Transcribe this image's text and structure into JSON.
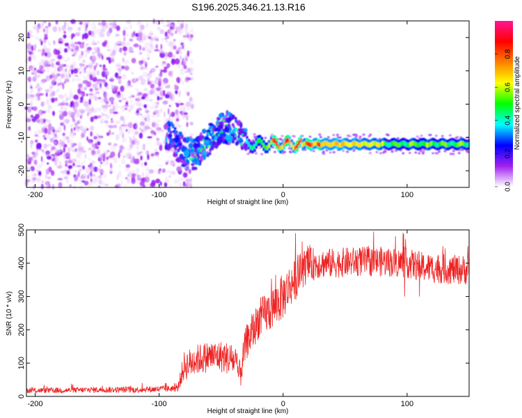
{
  "figure": {
    "title": "S196.2025.346.21.13.R16"
  },
  "chart_data": [
    {
      "type": "heatmap",
      "name": "spectrogram",
      "xlabel": "Height of straight line (km)",
      "ylabel": "Frequency (Hz)",
      "xlim": [
        -207,
        150
      ],
      "ylim": [
        -25,
        25
      ],
      "xticks": [
        -200,
        -100,
        0,
        100
      ],
      "yticks": [
        20,
        10,
        0,
        -10,
        -20
      ],
      "grid": false,
      "colorbar": {
        "label": "Normalized spectral amplitude",
        "range": [
          0,
          1
        ],
        "ticks": [
          0.0,
          0.2,
          0.4,
          0.6,
          0.8
        ],
        "tick_labels": [
          "0.0",
          "0.2",
          "0.4",
          "0.6",
          "0.8"
        ],
        "colors": [
          "#ffffff",
          "#a020f0",
          "#0000ff",
          "#00ffff",
          "#00ff00",
          "#ffff00",
          "#ff8000",
          "#ff0000",
          "#ff1493"
        ]
      },
      "features": [
        {
          "name": "noise-field",
          "x_range": [
            -207,
            -85
          ],
          "freq_range": [
            -25,
            25
          ],
          "amplitude": [
            0.02,
            0.15
          ]
        },
        {
          "name": "transition-blobs",
          "x_range": [
            -95,
            -30
          ],
          "freq_range": [
            -17,
            -3
          ],
          "amplitude": [
            0.1,
            0.35
          ]
        },
        {
          "name": "carrier-tone",
          "x_range": [
            -30,
            150
          ],
          "freq_center_hz": -12,
          "amplitude": [
            0.4,
            1.0
          ]
        }
      ]
    },
    {
      "type": "line",
      "name": "snr",
      "xlabel": "Height of straight line (km)",
      "ylabel": "SNR (10 * v/v)",
      "xlim": [
        -207,
        150
      ],
      "ylim": [
        0,
        500
      ],
      "xticks": [
        -200,
        -100,
        0,
        100
      ],
      "yticks": [
        0,
        100,
        200,
        300,
        400,
        500
      ],
      "grid": false,
      "color": "#ee2222",
      "trend": {
        "x": [
          -207,
          -180,
          -150,
          -120,
          -100,
          -85,
          -80,
          -70,
          -60,
          -50,
          -40,
          -35,
          -30,
          -25,
          -20,
          -10,
          0,
          5,
          10,
          15,
          20,
          30,
          40,
          60,
          80,
          100,
          110,
          120,
          140,
          150
        ],
        "y": [
          18,
          18,
          20,
          20,
          22,
          24,
          90,
          110,
          120,
          120,
          110,
          60,
          160,
          190,
          230,
          260,
          300,
          330,
          350,
          380,
          395,
          400,
          400,
          405,
          405,
          400,
          390,
          385,
          380,
          380
        ]
      },
      "noise_amplitude": {
        "x": [
          -207,
          -85,
          -80,
          -40,
          -35,
          0,
          30,
          150
        ],
        "y": [
          8,
          10,
          45,
          50,
          50,
          70,
          45,
          45
        ]
      },
      "notable_points": [
        {
          "x": -95,
          "y": 40
        },
        {
          "x": 10,
          "y": 490
        },
        {
          "x": 98,
          "y": 300
        },
        {
          "x": 110,
          "y": 300
        }
      ]
    }
  ]
}
